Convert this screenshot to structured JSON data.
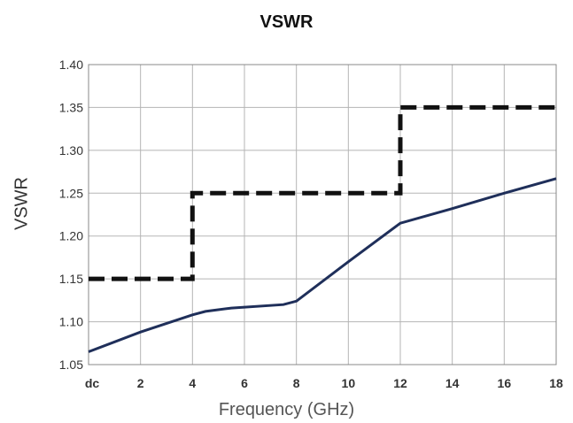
{
  "chart_data": {
    "type": "line",
    "title": "VSWR",
    "xlabel": "Frequency (GHz)",
    "ylabel": "VSWR",
    "xlim": [
      0,
      18
    ],
    "ylim": [
      1.05,
      1.4
    ],
    "x_ticks": [
      {
        "value": 0,
        "label": "dc"
      },
      {
        "value": 2,
        "label": "2"
      },
      {
        "value": 4,
        "label": "4"
      },
      {
        "value": 6,
        "label": "6"
      },
      {
        "value": 8,
        "label": "8"
      },
      {
        "value": 10,
        "label": "10"
      },
      {
        "value": 12,
        "label": "12"
      },
      {
        "value": 14,
        "label": "14"
      },
      {
        "value": 16,
        "label": "16"
      },
      {
        "value": 18,
        "label": "18"
      }
    ],
    "y_ticks": [
      {
        "value": 1.05,
        "label": "1.05"
      },
      {
        "value": 1.1,
        "label": "1.10"
      },
      {
        "value": 1.15,
        "label": "1.15"
      },
      {
        "value": 1.2,
        "label": "1.20"
      },
      {
        "value": 1.25,
        "label": "1.25"
      },
      {
        "value": 1.3,
        "label": "1.30"
      },
      {
        "value": 1.35,
        "label": "1.35"
      },
      {
        "value": 1.4,
        "label": "1.40"
      }
    ],
    "grid": true,
    "legend": "none",
    "series": [
      {
        "style": "solid",
        "color": "#1f2f5a",
        "x": [
          0,
          2,
          4,
          4.5,
          5.5,
          7.5,
          8,
          10,
          12,
          14,
          16,
          18
        ],
        "y": [
          1.065,
          1.088,
          1.108,
          1.112,
          1.116,
          1.12,
          1.124,
          1.17,
          1.215,
          1.232,
          1.25,
          1.267
        ]
      },
      {
        "style": "dashed",
        "color": "#111111",
        "x": [
          0,
          4,
          4,
          12,
          12,
          18
        ],
        "y": [
          1.15,
          1.15,
          1.25,
          1.25,
          1.35,
          1.35
        ]
      }
    ]
  }
}
